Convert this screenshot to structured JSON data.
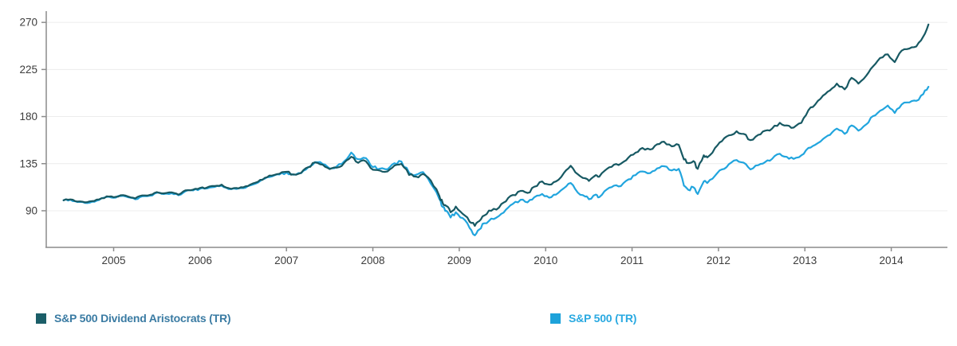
{
  "chart_data": {
    "type": "line",
    "title": "",
    "xlabel": "",
    "ylabel": "",
    "grid": "horizontal",
    "legend_position": "bottom",
    "xlim": [
      2004.22,
      2014.65
    ],
    "ylim": [
      55,
      280
    ],
    "xticks": [
      2005,
      2006,
      2007,
      2008,
      2009,
      2010,
      2011,
      2012,
      2013,
      2014
    ],
    "yticks": [
      90,
      135,
      180,
      225,
      270
    ],
    "x": [
      2004.42,
      2004.5,
      2004.58,
      2004.67,
      2004.75,
      2004.83,
      2004.92,
      2005.0,
      2005.08,
      2005.17,
      2005.25,
      2005.33,
      2005.42,
      2005.5,
      2005.58,
      2005.67,
      2005.75,
      2005.83,
      2005.92,
      2006.0,
      2006.08,
      2006.17,
      2006.25,
      2006.33,
      2006.42,
      2006.5,
      2006.58,
      2006.67,
      2006.75,
      2006.83,
      2006.92,
      2007.0,
      2007.08,
      2007.17,
      2007.25,
      2007.33,
      2007.42,
      2007.5,
      2007.58,
      2007.67,
      2007.75,
      2007.83,
      2007.92,
      2008.0,
      2008.08,
      2008.17,
      2008.25,
      2008.33,
      2008.42,
      2008.5,
      2008.58,
      2008.67,
      2008.77,
      2008.81,
      2008.85,
      2008.9,
      2008.96,
      2009.04,
      2009.12,
      2009.18,
      2009.23,
      2009.29,
      2009.37,
      2009.46,
      2009.54,
      2009.62,
      2009.71,
      2009.79,
      2009.87,
      2009.96,
      2010.04,
      2010.12,
      2010.21,
      2010.29,
      2010.37,
      2010.46,
      2010.5,
      2010.58,
      2010.62,
      2010.71,
      2010.79,
      2010.87,
      2010.96,
      2011.04,
      2011.12,
      2011.21,
      2011.29,
      2011.37,
      2011.46,
      2011.54,
      2011.6,
      2011.65,
      2011.71,
      2011.76,
      2011.83,
      2011.87,
      2011.96,
      2012.04,
      2012.12,
      2012.21,
      2012.29,
      2012.37,
      2012.46,
      2012.54,
      2012.62,
      2012.71,
      2012.79,
      2012.87,
      2012.96,
      2013.04,
      2013.12,
      2013.21,
      2013.29,
      2013.37,
      2013.46,
      2013.54,
      2013.62,
      2013.71,
      2013.79,
      2013.87,
      2013.96,
      2014.04,
      2014.12,
      2014.21,
      2014.29,
      2014.37,
      2014.43
    ],
    "series": [
      {
        "name": "S&P 500 Dividend Aristocrats (TR)",
        "color": "#175963",
        "label_color": "#3a7ba3",
        "values": [
          100,
          100.8,
          98.8,
          98,
          99.2,
          100.8,
          103.8,
          103,
          104.8,
          103.5,
          101.8,
          104.6,
          105.2,
          107.8,
          106.6,
          107.6,
          105.4,
          109.4,
          110.2,
          111.8,
          112.2,
          113.6,
          115,
          111.6,
          111.8,
          112.4,
          115,
          117.6,
          121.4,
          123.6,
          125.4,
          127.2,
          124.8,
          126.2,
          131.6,
          136.2,
          134,
          129.8,
          131.2,
          136,
          141.6,
          135.8,
          137.2,
          129.2,
          128.4,
          127.6,
          133.2,
          134.8,
          124.2,
          122.6,
          125.2,
          119,
          104,
          97,
          94.5,
          88.5,
          94,
          87,
          79.5,
          75.5,
          80,
          85.5,
          90,
          93,
          99,
          105,
          109,
          107,
          113,
          118,
          115,
          118,
          126,
          133,
          125,
          121,
          118.5,
          124,
          122.5,
          130,
          134,
          135,
          141,
          145.5,
          150,
          148.5,
          153.5,
          156,
          151.5,
          153,
          139,
          135.5,
          137.5,
          130,
          143,
          141,
          150,
          156.5,
          162,
          166,
          163.5,
          157.5,
          162.5,
          166.5,
          168.5,
          174,
          171.5,
          169.5,
          174,
          186,
          191.5,
          200,
          205,
          211.5,
          206,
          217,
          211.5,
          219,
          228,
          236,
          239.5,
          232,
          243,
          245,
          247,
          256.5,
          268
        ]
      },
      {
        "name": "S&P 500 (TR)",
        "color": "#21a5de",
        "label_color": "#29a9e1",
        "values": [
          100,
          100.5,
          98.3,
          97.4,
          98.6,
          100.2,
          103.2,
          102.4,
          104,
          102.8,
          101,
          103.8,
          104.4,
          107.2,
          106,
          106.8,
          104.8,
          108.6,
          109.4,
          111,
          111.3,
          112.8,
          114.1,
          110.8,
          110.9,
          111.6,
          114.2,
          116.9,
          120.7,
          122.8,
          124.6,
          126.6,
          124.4,
          125.9,
          131.4,
          136.4,
          134.6,
          130.4,
          132.2,
          137.3,
          145.6,
          139.2,
          140.3,
          131.6,
          130.2,
          129.6,
          135.4,
          137,
          126.2,
          124.4,
          127,
          116,
          101,
          93.5,
          90,
          83.5,
          88.5,
          83,
          73.5,
          66.5,
          72,
          78,
          82.5,
          85,
          91,
          96.5,
          100.5,
          98,
          103,
          106,
          102.5,
          105.5,
          111.5,
          116.5,
          107.5,
          103.5,
          101,
          105.5,
          103,
          110.5,
          114,
          113.5,
          120,
          124,
          127.5,
          126,
          130.5,
          132.5,
          128.5,
          130,
          114,
          110,
          112.5,
          106,
          118,
          116.5,
          123.5,
          129.5,
          134.5,
          138.5,
          136,
          129.5,
          133.5,
          136.5,
          139.5,
          144.5,
          141.5,
          139.5,
          143,
          150,
          153,
          158.5,
          162.5,
          168.5,
          163.5,
          171.5,
          166.5,
          172.5,
          180.5,
          185.5,
          190.5,
          183.5,
          191.5,
          193.5,
          195,
          201.5,
          208.5
        ]
      }
    ],
    "axis_color": "#8c8c8c",
    "gridline_color": "#ececec",
    "tick_label_color": "#3c3c3c"
  },
  "legend": {
    "items": [
      {
        "label": "S&P 500 Dividend Aristocrats (TR)",
        "swatch_color": "#1b5e68",
        "text_color": "#3a7ba3"
      },
      {
        "label": "S&P 500 (TR)",
        "swatch_color": "#1da2da",
        "text_color": "#29a9e1"
      }
    ]
  }
}
